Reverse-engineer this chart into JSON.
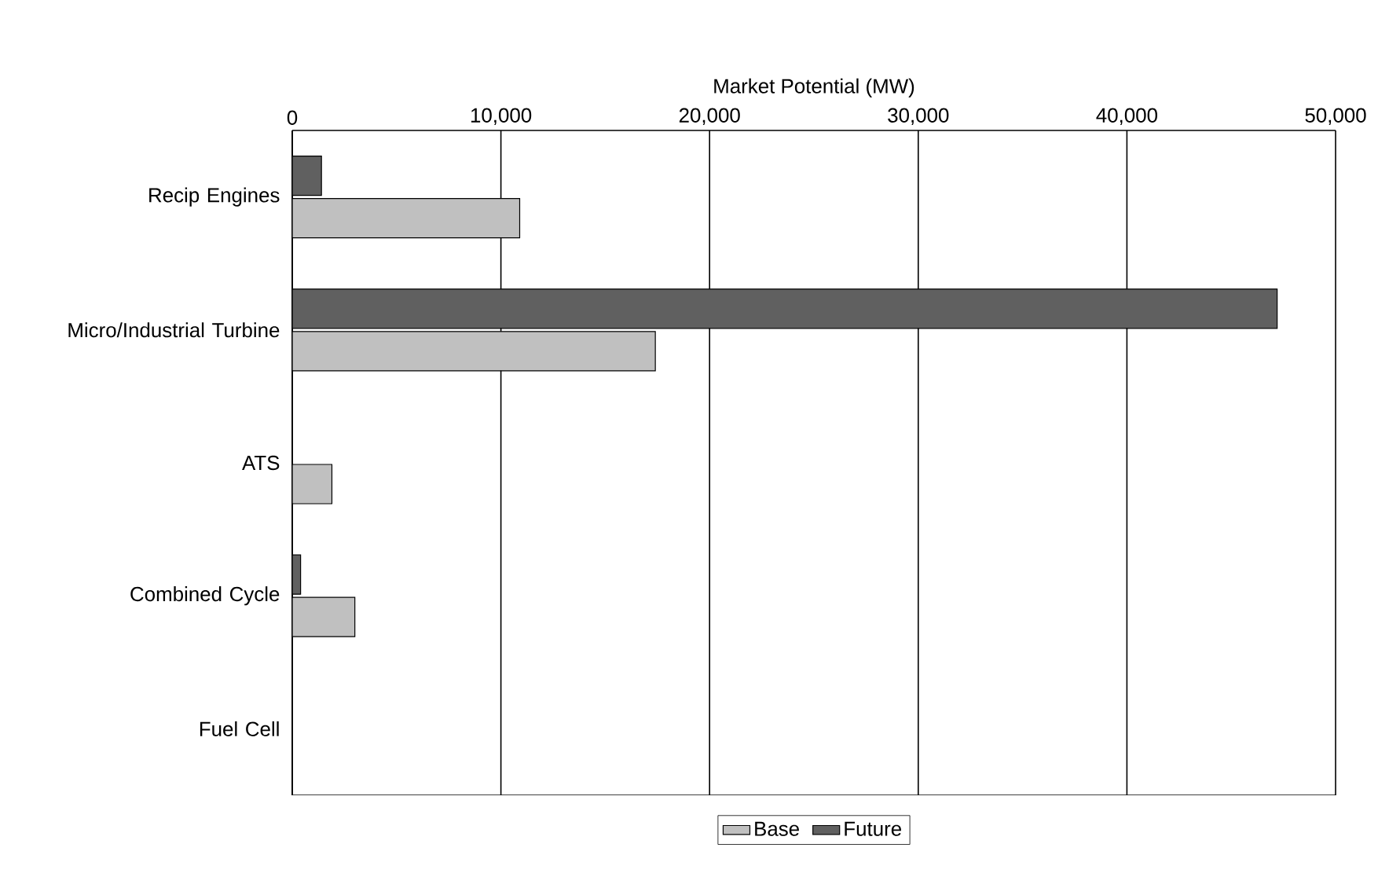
{
  "chart_data": {
    "type": "bar",
    "orientation": "horizontal",
    "xlabel": "Market Potential (MW)",
    "categories": [
      "Recip Engines",
      "Micro/Industrial Turbine",
      "ATS",
      "Combined Cycle",
      "Fuel Cell"
    ],
    "series": [
      {
        "name": "Base",
        "color": "#c0c0c0",
        "values": [
          10900,
          17400,
          1900,
          3000,
          0
        ]
      },
      {
        "name": "Future",
        "color": "#606060",
        "values": [
          1400,
          47200,
          0,
          400,
          0
        ]
      }
    ],
    "xlim": [
      0,
      50000
    ],
    "xticks": [
      {
        "value": 0,
        "label": "0"
      },
      {
        "value": 10000,
        "label": "10,000"
      },
      {
        "value": 20000,
        "label": "20,000"
      },
      {
        "value": 30000,
        "label": "30,000"
      },
      {
        "value": 40000,
        "label": "40,000"
      },
      {
        "value": 50000,
        "label": "50,000"
      }
    ],
    "grid": "x",
    "legend": "bottom"
  }
}
